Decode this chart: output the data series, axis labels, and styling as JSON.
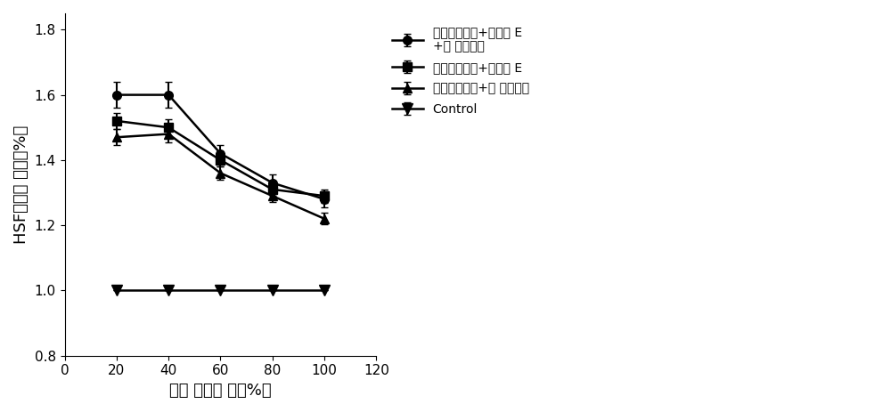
{
  "x": [
    20,
    40,
    60,
    80,
    100
  ],
  "series": [
    {
      "label": "干细胞浓缩液+维生素 E\n+人 参提取物",
      "y": [
        1.6,
        1.6,
        1.42,
        1.33,
        1.28
      ],
      "yerr": [
        0.04,
        0.04,
        0.025,
        0.025,
        0.025
      ],
      "marker": "o",
      "color": "#000000",
      "lw": 1.8,
      "ms": 7
    },
    {
      "label": "干细胞浓缩液+维生素 E",
      "y": [
        1.52,
        1.5,
        1.4,
        1.31,
        1.29
      ],
      "yerr": [
        0.025,
        0.025,
        0.02,
        0.02,
        0.02
      ],
      "marker": "s",
      "color": "#000000",
      "lw": 1.8,
      "ms": 7
    },
    {
      "label": "干细胞浓缩液+人 参提取物",
      "y": [
        1.47,
        1.48,
        1.36,
        1.29,
        1.22
      ],
      "yerr": [
        0.025,
        0.025,
        0.02,
        0.018,
        0.018
      ],
      "marker": "^",
      "color": "#000000",
      "lw": 1.8,
      "ms": 7
    },
    {
      "label": "Control",
      "y": [
        1.0,
        1.0,
        1.0,
        1.0,
        1.0
      ],
      "yerr": [
        0.0,
        0.0,
        0.0,
        0.0,
        0.0
      ],
      "marker": "v",
      "color": "#000000",
      "lw": 1.8,
      "ms": 9
    }
  ],
  "xlabel": "干细 胞浓缩 液（%）",
  "ylabel": "HSF细胞存 活率（%）",
  "xlim": [
    0,
    120
  ],
  "ylim": [
    0.8,
    1.85
  ],
  "xticks": [
    0,
    20,
    40,
    60,
    80,
    100,
    120
  ],
  "yticks": [
    0.8,
    1.0,
    1.2,
    1.4,
    1.6,
    1.8
  ],
  "figsize": [
    10.0,
    4.63
  ],
  "dpi": 100,
  "background_color": "#ffffff",
  "capsize": 3,
  "elinewidth": 1.5,
  "legend_fontsize": 10,
  "axis_fontsize": 13,
  "tick_fontsize": 11
}
